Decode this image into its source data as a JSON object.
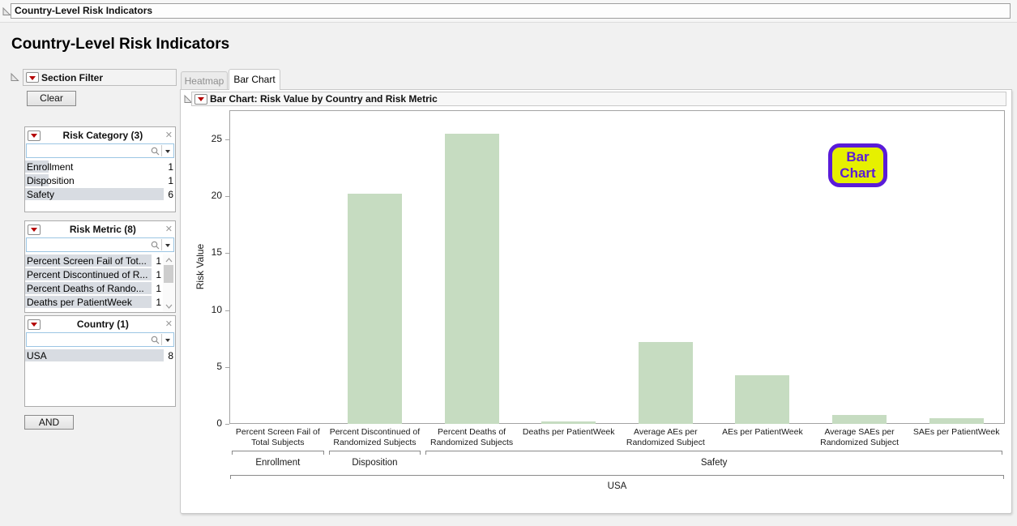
{
  "window_title": "Country-Level Risk Indicators",
  "page_title": "Country-Level Risk Indicators",
  "section_filter": {
    "title": "Section Filter",
    "clear_label": "Clear",
    "and_label": "AND",
    "groups": [
      {
        "title": "Risk Category (3)",
        "items": [
          {
            "label": "Enrollment",
            "count": "1",
            "bar_pct": 17
          },
          {
            "label": "Disposition",
            "count": "1",
            "bar_pct": 17
          },
          {
            "label": "Safety",
            "count": "6",
            "bar_pct": 100
          }
        ]
      },
      {
        "title": "Risk Metric (8)",
        "items": [
          {
            "label": "Percent Screen Fail of Tot...",
            "count": "1",
            "bar_pct": 100
          },
          {
            "label": "Percent Discontinued of R...",
            "count": "1",
            "bar_pct": 100
          },
          {
            "label": "Percent Deaths of Rando...",
            "count": "1",
            "bar_pct": 100
          },
          {
            "label": "Deaths per PatientWeek",
            "count": "1",
            "bar_pct": 100
          }
        ]
      },
      {
        "title": "Country (1)",
        "items": [
          {
            "label": "USA",
            "count": "8",
            "bar_pct": 100
          }
        ]
      }
    ]
  },
  "tabs": [
    {
      "label": "Heatmap",
      "active": false
    },
    {
      "label": "Bar Chart",
      "active": true
    }
  ],
  "outline": {
    "title": "Bar Chart: Risk Value by Country and Risk Metric"
  },
  "badge": {
    "lines": [
      "Bar",
      "Chart"
    ],
    "fill": "#e6f000",
    "accent": "#5a1cd8"
  },
  "chart_data": {
    "type": "bar",
    "title": "Bar Chart: Risk Value by Country and Risk Metric",
    "xlabel": "",
    "ylabel": "Risk Value",
    "ylim": [
      0,
      27.5
    ],
    "yticks": [
      0,
      5,
      10,
      15,
      20,
      25
    ],
    "grid": false,
    "legend": false,
    "bar_color": "#c6dcc1",
    "categories": [
      "Percent Screen Fail of Total Subjects",
      "Percent Discontinued of Randomized Subjects",
      "Percent Deaths of Randomized Subjects",
      "Deaths per PatientWeek",
      "Average AEs per Randomized Subject",
      "AEs per PatientWeek",
      "Average SAEs per Randomized Subject",
      "SAEs per PatientWeek"
    ],
    "values": [
      0,
      20.2,
      25.5,
      0.2,
      7.2,
      4.3,
      0.8,
      0.5
    ],
    "category_groups": [
      {
        "label": "Enrollment",
        "start": 0,
        "end": 0
      },
      {
        "label": "Disposition",
        "start": 1,
        "end": 1
      },
      {
        "label": "Safety",
        "start": 2,
        "end": 7
      }
    ],
    "outer_group": {
      "label": "USA",
      "start": 0,
      "end": 7
    }
  }
}
